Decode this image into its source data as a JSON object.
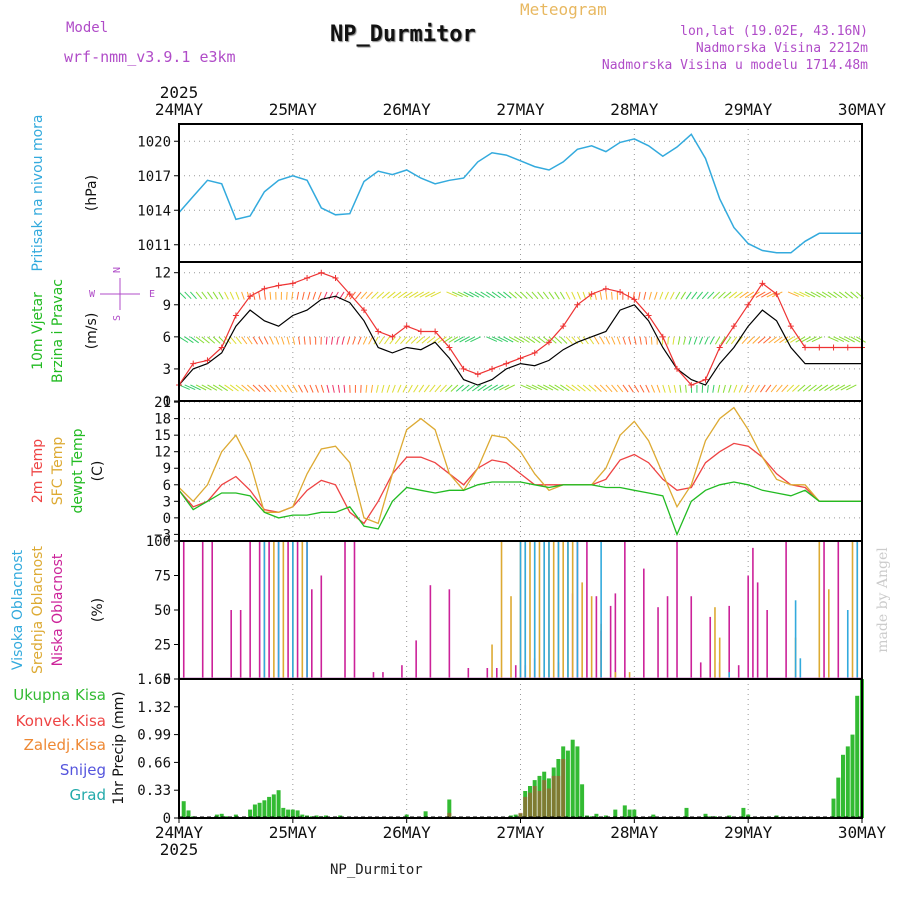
{
  "header": {
    "model_label": "Model",
    "model_name": "wrf-nmm_v3.9.1 e3km",
    "title": "NP_Durmitor",
    "meteogram": "Meteogram",
    "lonlat": "lon,lat (19.02E, 43.16N)",
    "elevation": "Nadmorska Visina 2212m",
    "model_elevation": "Nadmorska Visina u modelu 1714.48m",
    "signature": "made by Angel"
  },
  "footer": {
    "station": "NP_Durmitor"
  },
  "time_axis": {
    "year_top": "2025",
    "year_bottom": "2025",
    "labels": [
      "24MAY",
      "25MAY",
      "26MAY",
      "27MAY",
      "28MAY",
      "29MAY",
      "30MAY"
    ]
  },
  "colors": {
    "pressure": "#33aadd",
    "wind_obs": "#000000",
    "gust": "#ee3333",
    "temp2m": "#ee4444",
    "sfc_temp": "#ddaa33",
    "dewpt": "#22bb22",
    "high_cloud": "#33aadd",
    "mid_cloud": "#ddaa33",
    "low_cloud": "#cc2299",
    "precip": "#33bb33",
    "convective": "#ee4444"
  },
  "chart_data": [
    {
      "type": "line",
      "name": "pressure",
      "ylabel_lines": [
        "Pritisak na nivou mora"
      ],
      "unit": "(hPa)",
      "yticks": [
        "1011",
        "1014",
        "1017",
        "1020"
      ],
      "ylim": [
        1009.5,
        1021.5
      ],
      "x_hours": [
        0,
        3,
        6,
        9,
        12,
        15,
        18,
        21,
        24,
        27,
        30,
        33,
        36,
        39,
        42,
        45,
        48,
        51,
        54,
        57,
        60,
        63,
        66,
        69,
        72,
        75,
        78,
        81,
        84,
        87,
        90,
        93,
        96,
        99,
        102,
        105,
        108,
        111,
        114,
        117,
        120,
        123,
        126,
        129,
        132,
        135,
        138,
        141,
        144
      ],
      "values": [
        1013.8,
        1015.2,
        1016.6,
        1016.3,
        1013.2,
        1013.5,
        1015.6,
        1016.6,
        1017.0,
        1016.6,
        1014.2,
        1013.6,
        1013.7,
        1016.5,
        1017.4,
        1017.1,
        1017.5,
        1016.8,
        1016.3,
        1016.6,
        1016.8,
        1018.2,
        1019.0,
        1018.8,
        1018.3,
        1017.8,
        1017.5,
        1018.2,
        1019.3,
        1019.6,
        1019.1,
        1019.9,
        1020.2,
        1019.6,
        1018.7,
        1019.5,
        1020.6,
        1018.5,
        1015.0,
        1012.5,
        1011.1,
        1010.5,
        1010.3,
        1010.3,
        1011.3,
        1012.0,
        1012.0,
        1012.0,
        1012.0
      ]
    },
    {
      "type": "line",
      "name": "wind",
      "ylabel_lines": [
        "10m Vjetar",
        "Brzina i Pravac"
      ],
      "unit": "(m/s)",
      "compass": {
        "n": "N",
        "s": "S",
        "e": "E",
        "w": "W"
      },
      "yticks": [
        "0",
        "3",
        "6",
        "9",
        "12"
      ],
      "ylim": [
        0,
        13
      ],
      "x_hours": [
        0,
        3,
        6,
        9,
        12,
        15,
        18,
        21,
        24,
        27,
        30,
        33,
        36,
        39,
        42,
        45,
        48,
        51,
        54,
        57,
        60,
        63,
        66,
        69,
        72,
        75,
        78,
        81,
        84,
        87,
        90,
        93,
        96,
        99,
        102,
        105,
        108,
        111,
        114,
        117,
        120,
        123,
        126,
        129,
        132,
        135,
        138,
        141,
        144
      ],
      "series": [
        {
          "name": "speed",
          "values": [
            1.5,
            3.0,
            3.5,
            4.5,
            7.0,
            8.5,
            7.5,
            7.0,
            8.0,
            8.5,
            9.5,
            9.8,
            9.2,
            7.5,
            5.0,
            4.5,
            5.0,
            4.8,
            5.5,
            4.0,
            2.0,
            1.5,
            2.0,
            3.0,
            3.5,
            3.3,
            3.8,
            4.8,
            5.5,
            6.0,
            6.5,
            8.5,
            9.0,
            7.5,
            5.0,
            3.0,
            2.0,
            1.5,
            3.5,
            5.0,
            7.0,
            8.5,
            7.5,
            5.0,
            3.5,
            3.5,
            3.5,
            3.5,
            3.5
          ]
        },
        {
          "name": "gust",
          "values": [
            1.5,
            3.5,
            3.8,
            5.0,
            8.0,
            9.8,
            10.5,
            10.8,
            11.0,
            11.5,
            12.0,
            11.5,
            10.0,
            8.5,
            6.5,
            6.0,
            7.0,
            6.5,
            6.5,
            5.0,
            3.0,
            2.5,
            3.0,
            3.5,
            4.0,
            4.5,
            5.5,
            7.0,
            9.0,
            10.0,
            10.5,
            10.2,
            9.5,
            8.0,
            6.0,
            3.0,
            1.5,
            2.0,
            5.0,
            7.0,
            9.0,
            11.0,
            10.0,
            7.0,
            5.0,
            5.0,
            5.0,
            5.0,
            5.0
          ]
        }
      ]
    },
    {
      "type": "line",
      "name": "temperature",
      "ylabel_lines": [
        "2m Temp",
        "SFC Temp",
        "dewpt Temp"
      ],
      "unit": "(C)",
      "yticks": [
        "-3",
        "0",
        "3",
        "6",
        "9",
        "12",
        "15",
        "18",
        "21"
      ],
      "ylim": [
        -4.2,
        21.2
      ],
      "x_hours": [
        0,
        3,
        6,
        9,
        12,
        15,
        18,
        21,
        24,
        27,
        30,
        33,
        36,
        39,
        42,
        45,
        48,
        51,
        54,
        57,
        60,
        63,
        66,
        69,
        72,
        75,
        78,
        81,
        84,
        87,
        90,
        93,
        96,
        99,
        102,
        105,
        108,
        111,
        114,
        117,
        120,
        123,
        126,
        129,
        132,
        135,
        138,
        141,
        144
      ],
      "series": [
        {
          "name": "2m Temp",
          "values": [
            5,
            2,
            3,
            6,
            7.5,
            5,
            1.5,
            1,
            2,
            5,
            6.8,
            6,
            1,
            -1,
            3,
            8,
            11,
            11,
            10,
            8,
            6,
            9,
            10.5,
            10,
            8,
            6,
            6,
            6,
            6,
            6,
            7,
            10.5,
            11.5,
            10,
            7,
            5,
            5.5,
            10,
            12,
            13.5,
            13,
            11,
            8,
            6,
            5.5,
            3,
            3,
            3,
            3
          ]
        },
        {
          "name": "SFC Temp",
          "values": [
            5.5,
            3,
            6,
            12,
            15,
            10,
            1,
            1,
            2,
            8,
            12.5,
            13,
            10,
            0,
            -1,
            8,
            16,
            18,
            16,
            8,
            5,
            9,
            15,
            14.5,
            12,
            8,
            5,
            6,
            6,
            6,
            9,
            15,
            17.5,
            14,
            8,
            2,
            6,
            14,
            18,
            20,
            16,
            11,
            7,
            6,
            6,
            3,
            3,
            3,
            3
          ]
        },
        {
          "name": "dewpt Temp",
          "values": [
            5,
            1.5,
            3,
            4.5,
            4.5,
            4,
            1,
            0,
            0.5,
            0.5,
            1,
            1,
            2,
            -1.5,
            -2,
            3,
            5.5,
            5,
            4.5,
            5,
            5,
            6,
            6.5,
            6.5,
            6.5,
            6,
            5.5,
            6,
            6,
            6,
            5.5,
            5.5,
            5,
            4.5,
            4,
            -3,
            3,
            5,
            6,
            6.5,
            6,
            5,
            4.5,
            4,
            5,
            3,
            3,
            3,
            3
          ]
        }
      ]
    },
    {
      "type": "bar",
      "name": "cloud_cover",
      "ylabel_lines": [
        "Visoka Oblacnost",
        "Srednja Oblacnost",
        "Niska Oblacnost"
      ],
      "unit": "(%)",
      "yticks": [
        "0",
        "25",
        "50",
        "75",
        "100"
      ],
      "ylim": [
        0,
        100
      ],
      "series": [
        {
          "name": "Niska Oblacnost",
          "x_hours": [
            1,
            5,
            7,
            11,
            13,
            15,
            17,
            19,
            21,
            23,
            25,
            27,
            28,
            30,
            35,
            37,
            41,
            43,
            47,
            50,
            53,
            57,
            61,
            65,
            67,
            71,
            73,
            75,
            80,
            83,
            84,
            86,
            88,
            89,
            91,
            92,
            94,
            98,
            101,
            103,
            105,
            108,
            110,
            112,
            114,
            116,
            118,
            120,
            121,
            122,
            124,
            128,
            136,
            139
          ],
          "values": [
            100,
            100,
            100,
            50,
            50,
            100,
            100,
            100,
            100,
            100,
            100,
            100,
            65,
            75,
            100,
            100,
            5,
            5,
            10,
            28,
            68,
            65,
            8,
            8,
            8,
            10,
            10,
            15,
            12,
            62,
            100,
            100,
            60,
            35,
            53,
            62,
            100,
            80,
            52,
            60,
            100,
            60,
            12,
            45,
            12,
            53,
            10,
            75,
            95,
            70,
            50,
            100,
            100,
            100
          ]
        },
        {
          "name": "Srednja Oblacnost",
          "x_hours": [
            18,
            20,
            22,
            24,
            26,
            66,
            68,
            70,
            72,
            73,
            74,
            75,
            76,
            77,
            78,
            79,
            80,
            81,
            82,
            83,
            85,
            87,
            89,
            92,
            95,
            113,
            114,
            130,
            135,
            137,
            142,
            143
          ],
          "values": [
            100,
            100,
            100,
            100,
            100,
            25,
            100,
            60,
            100,
            100,
            100,
            100,
            100,
            100,
            100,
            100,
            100,
            100,
            100,
            100,
            70,
            60,
            40,
            5,
            5,
            52,
            30,
            30,
            100,
            65,
            100,
            100
          ]
        },
        {
          "name": "Visoka Oblacnost",
          "x_hours": [
            18,
            21,
            24,
            27,
            72,
            73,
            75,
            77,
            78,
            80,
            82,
            84,
            89,
            116,
            130,
            131,
            141,
            143
          ],
          "values": [
            100,
            100,
            100,
            100,
            100,
            100,
            100,
            100,
            100,
            100,
            100,
            100,
            100,
            5,
            57,
            15,
            50,
            100
          ]
        }
      ]
    },
    {
      "type": "bar",
      "name": "precipitation",
      "legend": [
        "Ukupna Kisa",
        "Konvek.Kisa",
        "Zaledj.Kisa",
        "Snijeg",
        "Grad"
      ],
      "ylabel_lines": [
        "1hr Precip (mm)"
      ],
      "yticks": [
        "0",
        "0.33",
        "0.66",
        "0.99",
        "1.32",
        "1.65"
      ],
      "ylim": [
        0,
        1.65
      ],
      "series": [
        {
          "name": "Ukupna Kisa",
          "x_hours": [
            1,
            2,
            3,
            8,
            9,
            10,
            12,
            15,
            16,
            17,
            18,
            19,
            20,
            21,
            22,
            23,
            24,
            25,
            26,
            27,
            28,
            29,
            30,
            31,
            34,
            48,
            52,
            57,
            70,
            71,
            72,
            73,
            74,
            75,
            76,
            77,
            78,
            79,
            80,
            81,
            82,
            83,
            84,
            85,
            86,
            87,
            88,
            90,
            92,
            94,
            95,
            96,
            100,
            107,
            111,
            112,
            113,
            116,
            119,
            120,
            126,
            138,
            139,
            140,
            141,
            142,
            143,
            144
          ],
          "values": [
            0.2,
            0.09,
            0.02,
            0.04,
            0.05,
            0.02,
            0.04,
            0.1,
            0.16,
            0.18,
            0.21,
            0.25,
            0.28,
            0.33,
            0.12,
            0.1,
            0.1,
            0.09,
            0.04,
            0.03,
            0.02,
            0.03,
            0.02,
            0.03,
            0.03,
            0.04,
            0.08,
            0.22,
            0.03,
            0.04,
            0.05,
            0.32,
            0.38,
            0.45,
            0.5,
            0.55,
            0.47,
            0.6,
            0.7,
            0.85,
            0.8,
            0.93,
            0.85,
            0.4,
            0.03,
            0.02,
            0.05,
            0.03,
            0.1,
            0.15,
            0.1,
            0.1,
            0.04,
            0.12,
            0.05,
            0.02,
            0.02,
            0.03,
            0.12,
            0.04,
            0.03,
            0.23,
            0.48,
            0.75,
            0.85,
            0.99,
            1.45,
            1.65
          ]
        },
        {
          "name": "Konvek.Kisa",
          "x_hours": [
            57,
            72,
            73,
            74,
            75,
            76,
            77,
            78,
            79,
            80,
            81
          ],
          "values": [
            0.06,
            0.06,
            0.25,
            0.3,
            0.38,
            0.32,
            0.45,
            0.35,
            0.5,
            0.5,
            0.7
          ]
        }
      ]
    }
  ]
}
